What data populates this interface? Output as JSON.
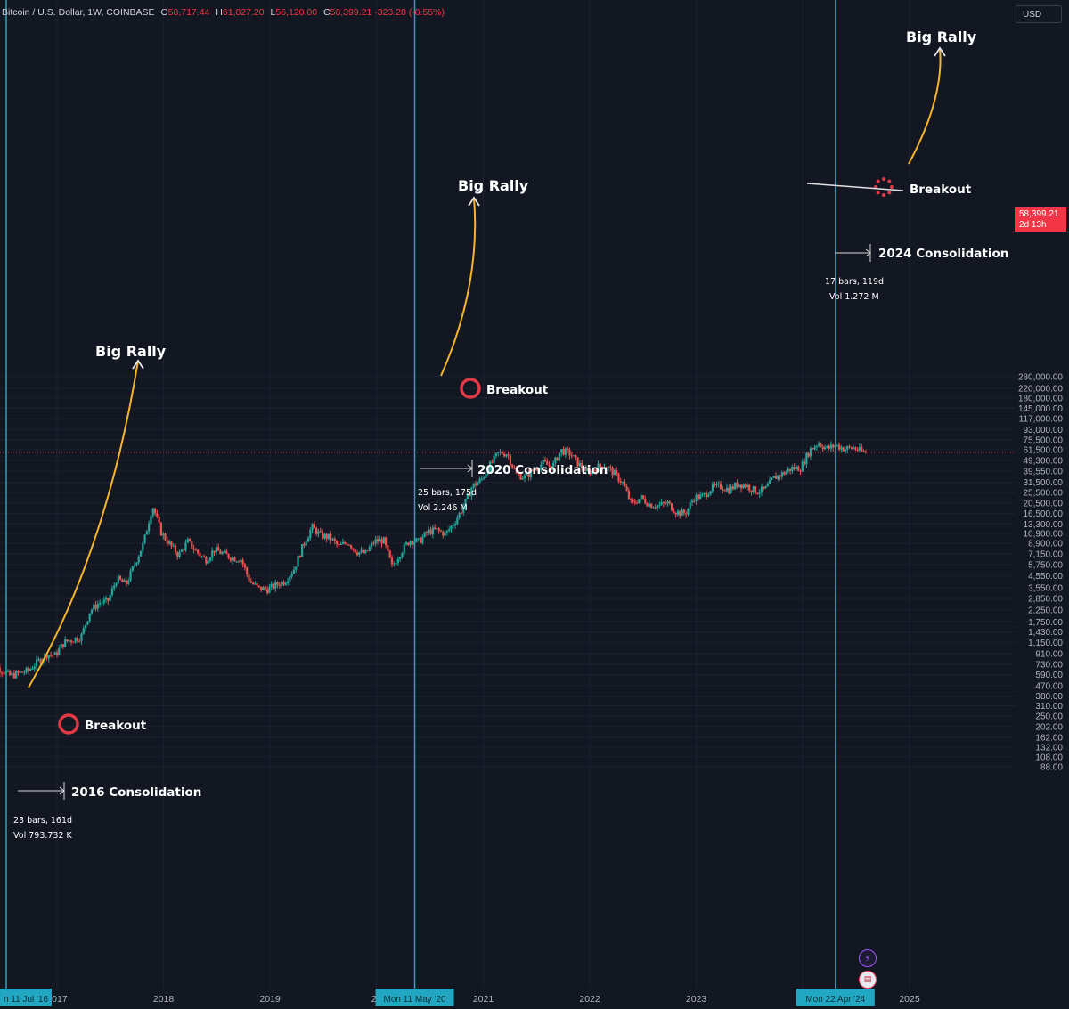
{
  "header": {
    "symbol": "Bitcoin / U.S. Dollar, 1W, COINBASE",
    "open_label": "O",
    "open": "58,717.44",
    "high_label": "H",
    "high": "61,827.20",
    "low_label": "L",
    "low": "56,120.00",
    "close_label": "C",
    "close": "58,399.21",
    "change": "-323.28 (-0.55%)"
  },
  "currency_button": "USD",
  "price_tag": {
    "price": "58,399.21",
    "countdown": "2d 13h"
  },
  "icons": {
    "bolt": "lightning-icon",
    "flag": "us-flag-icon"
  },
  "colors": {
    "background": "#131722",
    "up": "#26a69a",
    "down": "#ef5350",
    "cycle_line": "#22a7c2",
    "arrow": "#f5b52b",
    "circle": "#e23a45"
  },
  "chart_data": {
    "type": "candlestick",
    "scale": "log",
    "ylim": [
      88,
      280000
    ],
    "y_ticks": [
      "280,000.00",
      "220,000.00",
      "180,000.00",
      "145,000.00",
      "117,000.00",
      "93,000.00",
      "75,500.00",
      "61,500.00",
      "49,300.00",
      "39,550.00",
      "31,500.00",
      "25,500.00",
      "20,500.00",
      "16,500.00",
      "13,300.00",
      "10,900.00",
      "8,900.00",
      "7,150.00",
      "5,750.00",
      "4,550.00",
      "3,550.00",
      "2,850.00",
      "2,250.00",
      "1,750.00",
      "1,430.00",
      "1,150.00",
      "910.00",
      "730.00",
      "590.00",
      "470.00",
      "380.00",
      "310.00",
      "250.00",
      "202.00",
      "162.00",
      "132.00",
      "108.00",
      "88.00"
    ],
    "x_ticks": [
      {
        "label": "2017",
        "date": "2017-01"
      },
      {
        "label": "2018",
        "date": "2018-01"
      },
      {
        "label": "2019",
        "date": "2019-01"
      },
      {
        "label": "20",
        "date": "2020-01"
      },
      {
        "label": "2021",
        "date": "2021-01"
      },
      {
        "label": "2022",
        "date": "2022-01"
      },
      {
        "label": "2023",
        "date": "2023-01"
      },
      {
        "label": "2",
        "date": "2024-01"
      },
      {
        "label": "2025",
        "date": "2025-01"
      }
    ],
    "cycle_markers": [
      {
        "label": "n 11 Jul '16",
        "date": "2016-07-11"
      },
      {
        "label": "Mon 11 May '20",
        "date": "2020-05-11"
      },
      {
        "label": "Mon 22 Apr '24",
        "date": "2024-04-22"
      }
    ],
    "price_path": [
      [
        "2016-05",
        450
      ],
      [
        "2016-06",
        720
      ],
      [
        "2016-07",
        650
      ],
      [
        "2016-08",
        575
      ],
      [
        "2016-10",
        640
      ],
      [
        "2016-12",
        900
      ],
      [
        "2017-01",
        880
      ],
      [
        "2017-02",
        1150
      ],
      [
        "2017-04",
        1300
      ],
      [
        "2017-05",
        2200
      ],
      [
        "2017-06",
        2600
      ],
      [
        "2017-07",
        2700
      ],
      [
        "2017-08",
        4300
      ],
      [
        "2017-09",
        3800
      ],
      [
        "2017-10",
        5800
      ],
      [
        "2017-11",
        9000
      ],
      [
        "2017-12",
        19500
      ],
      [
        "2018-01",
        11000
      ],
      [
        "2018-02",
        8500
      ],
      [
        "2018-03",
        7000
      ],
      [
        "2018-04",
        9200
      ],
      [
        "2018-05",
        7500
      ],
      [
        "2018-06",
        6300
      ],
      [
        "2018-07",
        7800
      ],
      [
        "2018-09",
        6600
      ],
      [
        "2018-10",
        6400
      ],
      [
        "2018-11",
        4000
      ],
      [
        "2018-12",
        3500
      ],
      [
        "2019-01",
        3450
      ],
      [
        "2019-02",
        3800
      ],
      [
        "2019-03",
        4100
      ],
      [
        "2019-04",
        5300
      ],
      [
        "2019-05",
        8500
      ],
      [
        "2019-06",
        12500
      ],
      [
        "2019-07",
        10500
      ],
      [
        "2019-08",
        10000
      ],
      [
        "2019-09",
        8300
      ],
      [
        "2019-10",
        9200
      ],
      [
        "2019-11",
        7500
      ],
      [
        "2019-12",
        7200
      ],
      [
        "2020-01",
        9300
      ],
      [
        "2020-02",
        9500
      ],
      [
        "2020-03",
        5500
      ],
      [
        "2020-04",
        7500
      ],
      [
        "2020-05",
        9500
      ],
      [
        "2020-06",
        9200
      ],
      [
        "2020-07",
        11300
      ],
      [
        "2020-08",
        11700
      ],
      [
        "2020-09",
        10800
      ],
      [
        "2020-10",
        13800
      ],
      [
        "2020-11",
        19000
      ],
      [
        "2020-12",
        29000
      ],
      [
        "2021-01",
        33000
      ],
      [
        "2021-02",
        45000
      ],
      [
        "2021-03",
        58000
      ],
      [
        "2021-04",
        57000
      ],
      [
        "2021-05",
        37000
      ],
      [
        "2021-06",
        35000
      ],
      [
        "2021-07",
        41000
      ],
      [
        "2021-08",
        47000
      ],
      [
        "2021-09",
        43000
      ],
      [
        "2021-10",
        61000
      ],
      [
        "2021-11",
        57000
      ],
      [
        "2021-12",
        46000
      ],
      [
        "2022-01",
        38000
      ],
      [
        "2022-02",
        43000
      ],
      [
        "2022-03",
        45000
      ],
      [
        "2022-04",
        38000
      ],
      [
        "2022-05",
        31000
      ],
      [
        "2022-06",
        19800
      ],
      [
        "2022-07",
        23000
      ],
      [
        "2022-08",
        20000
      ],
      [
        "2022-09",
        19400
      ],
      [
        "2022-10",
        20500
      ],
      [
        "2022-11",
        17000
      ],
      [
        "2022-12",
        16500
      ],
      [
        "2023-01",
        23000
      ],
      [
        "2023-02",
        23500
      ],
      [
        "2023-03",
        28000
      ],
      [
        "2023-04",
        29000
      ],
      [
        "2023-05",
        27000
      ],
      [
        "2023-06",
        30500
      ],
      [
        "2023-07",
        29200
      ],
      [
        "2023-08",
        26000
      ],
      [
        "2023-09",
        27000
      ],
      [
        "2023-10",
        34500
      ],
      [
        "2023-11",
        37700
      ],
      [
        "2023-12",
        42000
      ],
      [
        "2024-01",
        42500
      ],
      [
        "2024-02",
        61000
      ],
      [
        "2024-03",
        71000
      ],
      [
        "2024-04",
        63000
      ],
      [
        "2024-05",
        67500
      ],
      [
        "2024-06",
        62700
      ],
      [
        "2024-07",
        64500
      ],
      [
        "2024-08",
        58399
      ]
    ],
    "annotations": [
      {
        "kind": "label",
        "text": "Big Rally",
        "date": "2017-09",
        "price": 20500
      },
      {
        "kind": "label",
        "text": "Big Rally",
        "date": "2021-01",
        "price": 70000
      },
      {
        "kind": "label",
        "text": "Big Rally",
        "date": "2025-01",
        "price": 230000
      },
      {
        "kind": "label",
        "text": "Breakout",
        "date": "2016-12",
        "price": 760
      },
      {
        "kind": "label",
        "text": "Breakout",
        "date": "2020-11",
        "price": 12500
      },
      {
        "kind": "label",
        "text": "Breakout",
        "date": "2024-10",
        "price": 70000
      },
      {
        "kind": "label",
        "text": "2016 Consolidation",
        "date": "2017-03",
        "price": 450
      },
      {
        "kind": "label",
        "text": "2020 Consolidation",
        "date": "2021-02",
        "price": 6700
      },
      {
        "kind": "label",
        "text": "2024 Consolidation",
        "date": "2025-02",
        "price": 41500
      },
      {
        "kind": "measure",
        "bars": "23 bars, 161d",
        "vol": "Vol 793.732 K"
      },
      {
        "kind": "measure",
        "bars": "25 bars, 175d",
        "vol": "Vol 2.246 M"
      },
      {
        "kind": "measure",
        "bars": "17 bars, 119d",
        "vol": "Vol 1.272 M"
      }
    ]
  }
}
